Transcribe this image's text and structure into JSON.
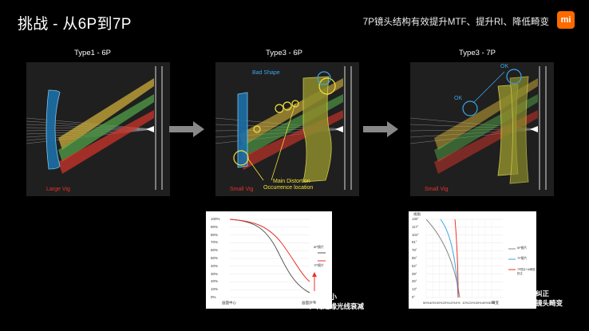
{
  "header": {
    "title": "挑战 -   从6P到7P",
    "subtitle": "7P镜头结构有效提升MTF、提升RI、降低畸变",
    "logo": "mi"
  },
  "panels": [
    {
      "title": "Type1 - 6P",
      "label_bottom": "Large Vig"
    },
    {
      "title": "Type3 - 6P",
      "label_bottom": "Small Vig",
      "label_top": "Bad Shape",
      "label_mid1": "Main Distortion",
      "label_mid2": "Occurrence location"
    },
    {
      "title": "Type3 - 7P",
      "label_bottom": "Small Vig",
      "label_ok1": "OK",
      "label_ok2": "OK"
    }
  ],
  "colors": {
    "accent": "#ff6a00",
    "red_label": "#e8322b",
    "yellow_label": "#f5e23b",
    "blue_label": "#3aa6e8"
  },
  "chart_ri": {
    "type": "line",
    "yticks": [
      "100%",
      "90%",
      "80%",
      "70%",
      "60%",
      "50%",
      "40%",
      "30%",
      "20%",
      "10%",
      "0%"
    ],
    "xlabels": [
      "画面中心",
      "画面边缘"
    ],
    "legend": [
      "6P镜片",
      "7P镜片"
    ],
    "note1": "有效减小",
    "note2": "广角边缘光线衰减"
  },
  "chart_dist": {
    "type": "line",
    "ylabel": "视角",
    "yticks": [
      "130°",
      "117°",
      "104°",
      "91°",
      "78°",
      "65°",
      "52°",
      "39°",
      "26°",
      "13°",
      "0°"
    ],
    "xticks": [
      "50%",
      "40%",
      "30%",
      "20%",
      "10%",
      "0%",
      "10%",
      "20%",
      "30%",
      "40%",
      "50%"
    ],
    "xlabel": "畸变",
    "legend": [
      "6P镜片",
      "7P镜片",
      "7P镜片+AI畸变校正"
    ],
    "note1": "有效纠正",
    "note2": "广角镜头畸变"
  }
}
